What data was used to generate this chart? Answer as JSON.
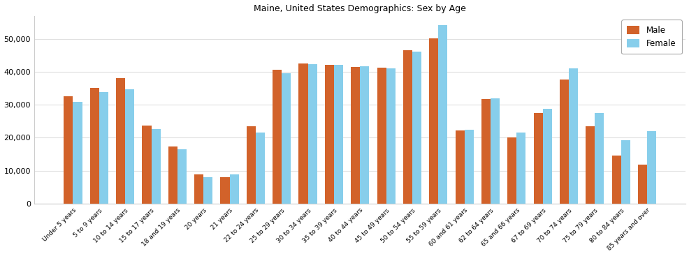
{
  "title": "Maine, United States Demographics: Sex by Age",
  "categories": [
    "Under 5 years",
    "5 to 9 years",
    "10 to 14 years",
    "15 to 17 years",
    "18 and 19 years",
    "20 years",
    "21 years",
    "22 to 24 years",
    "25 to 29 years",
    "30 to 34 years",
    "35 to 39 years",
    "40 to 44 years",
    "45 to 49 years",
    "50 to 54 years",
    "55 to 59 years",
    "60 and 61 years",
    "62 to 64 years",
    "65 and 66 years",
    "67 to 69 years",
    "70 to 74 years",
    "75 to 79 years",
    "80 to 84 years",
    "85 years and over"
  ],
  "male": [
    32500,
    35200,
    38000,
    23800,
    17300,
    8800,
    8100,
    23400,
    40700,
    42600,
    42000,
    41500,
    41300,
    46500,
    50200,
    22300,
    31700,
    20100,
    27600,
    37700,
    23500,
    14600,
    11900
  ],
  "female": [
    30800,
    33900,
    34700,
    22700,
    16600,
    8100,
    8900,
    21600,
    39600,
    42300,
    42000,
    41700,
    41000,
    46100,
    54200,
    22500,
    32000,
    21500,
    28800,
    41000,
    27500,
    19200,
    22000
  ],
  "male_color": "#d2622a",
  "female_color": "#87ceeb",
  "ylim": [
    0,
    57000
  ],
  "yticks": [
    0,
    10000,
    20000,
    30000,
    40000,
    50000
  ],
  "figure_facecolor": "#ffffff",
  "axes_facecolor": "#ffffff",
  "bar_width": 0.35,
  "legend_labels": [
    "Male",
    "Female"
  ],
  "grid_color": "#e0e0e0",
  "spine_color": "#cccccc"
}
